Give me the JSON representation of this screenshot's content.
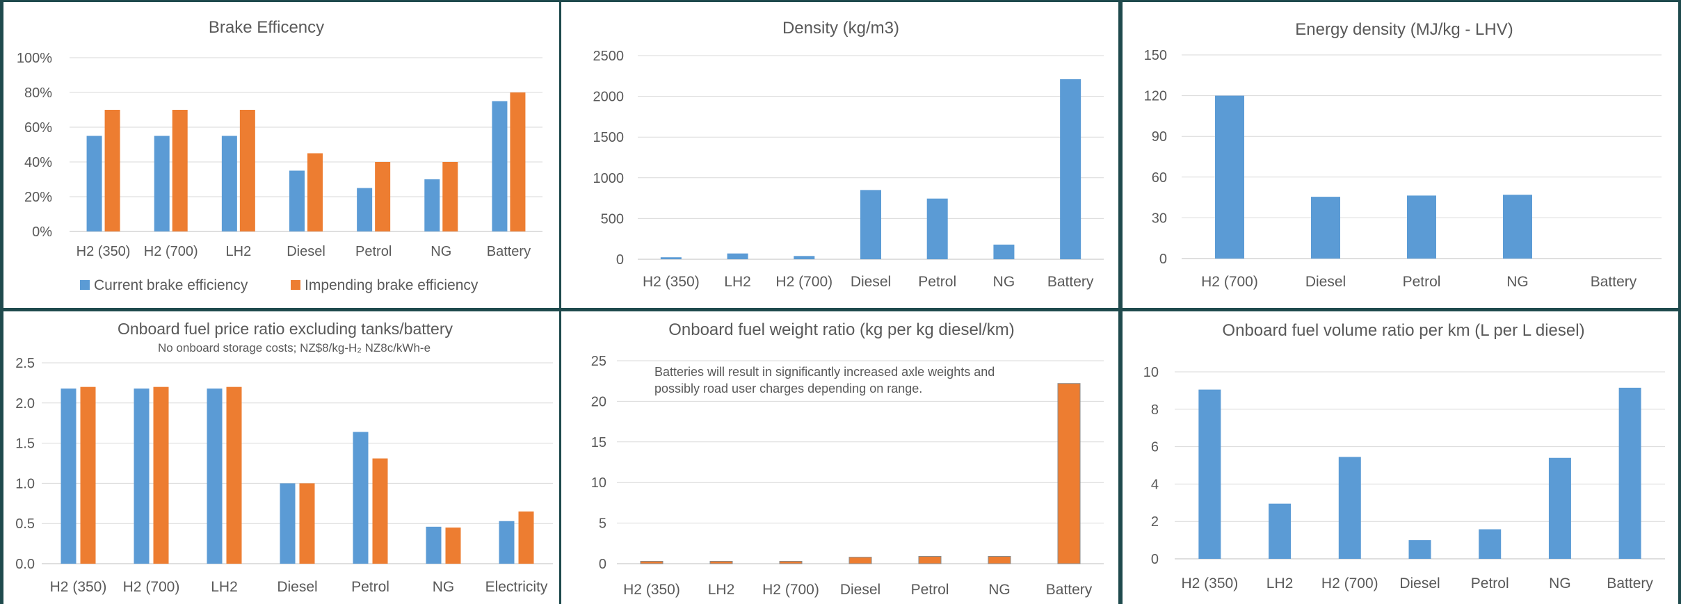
{
  "colors": {
    "blue": "#5b9bd5",
    "orange": "#ed7d31",
    "grid": "#d9d9d9",
    "text": "#595959",
    "background": "#1f4a4d"
  },
  "chart_data": [
    {
      "type": "bar",
      "title": "Brake Efficency",
      "subtitle": "",
      "categories": [
        "H2 (350)",
        "H2 (700)",
        "LH2",
        "Diesel",
        "Petrol",
        "NG",
        "Battery"
      ],
      "series": [
        {
          "name": "Current brake efficiency",
          "values": [
            55,
            55,
            55,
            35,
            25,
            30,
            75
          ]
        },
        {
          "name": "Impending brake efficiency",
          "values": [
            70,
            70,
            70,
            45,
            40,
            40,
            80
          ]
        }
      ],
      "ylim": [
        0,
        100
      ],
      "yticks": [
        "0%",
        "20%",
        "40%",
        "60%",
        "80%",
        "100%"
      ],
      "legend": "bottom",
      "grid": true
    },
    {
      "type": "bar",
      "title": "Density (kg/m3)",
      "subtitle": "",
      "categories": [
        "H2 (350)",
        "LH2",
        "H2 (700)",
        "Diesel",
        "Petrol",
        "NG",
        "Battery"
      ],
      "series": [
        {
          "values": [
            24,
            71,
            40,
            850,
            745,
            180,
            2210
          ]
        }
      ],
      "ylim": [
        0,
        2500
      ],
      "yticks": [
        "0",
        "500",
        "1000",
        "1500",
        "2000",
        "2500"
      ],
      "grid": true
    },
    {
      "type": "bar",
      "title": "Energy density (MJ/kg - LHV)",
      "subtitle": "",
      "categories": [
        "H2 (700)",
        "Diesel",
        "Petrol",
        "NG",
        "Battery"
      ],
      "series": [
        {
          "values": [
            120,
            45.5,
            46.4,
            47,
            0
          ]
        }
      ],
      "ylim": [
        0,
        150
      ],
      "yticks": [
        "0",
        "30",
        "60",
        "90",
        "120",
        "150"
      ],
      "grid": true
    },
    {
      "type": "bar",
      "title": "Onboard fuel price ratio excluding tanks/battery",
      "subtitle": "No onboard storage costs; NZ$8/kg-H₂ NZ8c/kWh-e",
      "categories": [
        "H2 (350)",
        "H2 (700)",
        "LH2",
        "Diesel",
        "Petrol",
        "NG",
        "Electricity"
      ],
      "series": [
        {
          "values": [
            2.18,
            2.18,
            2.18,
            1.0,
            1.64,
            0.46,
            0.53
          ]
        },
        {
          "values": [
            2.2,
            2.2,
            2.2,
            1.0,
            1.31,
            0.45,
            0.65
          ]
        }
      ],
      "ylim": [
        0,
        2.5
      ],
      "yticks": [
        "0.0",
        "0.5",
        "1.0",
        "1.5",
        "2.0",
        "2.5"
      ],
      "grid": true
    },
    {
      "type": "bar",
      "title": "Onboard fuel weight ratio (kg per kg diesel/km)",
      "subtitle": "",
      "annotation": [
        "Batteries will  result in significantly increased axle weights and",
        "possibly road user charges depending on range."
      ],
      "categories": [
        "H2 (350)",
        "LH2",
        "H2 (700)",
        "Diesel",
        "Petrol",
        "NG",
        "Battery"
      ],
      "series": [
        {
          "values": [
            0.3,
            0.3,
            0.3,
            0.8,
            0.9,
            0.9,
            22.2
          ]
        }
      ],
      "ylim": [
        0,
        25
      ],
      "yticks": [
        "0",
        "5",
        "10",
        "15",
        "20",
        "25"
      ],
      "grid": true
    },
    {
      "type": "bar",
      "title": "Onboard fuel volume ratio per km (L per L diesel)",
      "subtitle": "",
      "categories": [
        "H2 (350)",
        "LH2",
        "H2 (700)",
        "Diesel",
        "Petrol",
        "NG",
        "Battery"
      ],
      "series": [
        {
          "values": [
            9.05,
            2.95,
            5.45,
            1.0,
            1.58,
            5.4,
            9.15
          ]
        }
      ],
      "ylim": [
        0,
        10
      ],
      "yticks": [
        "0",
        "2",
        "4",
        "6",
        "8",
        "10"
      ],
      "grid": true
    }
  ]
}
